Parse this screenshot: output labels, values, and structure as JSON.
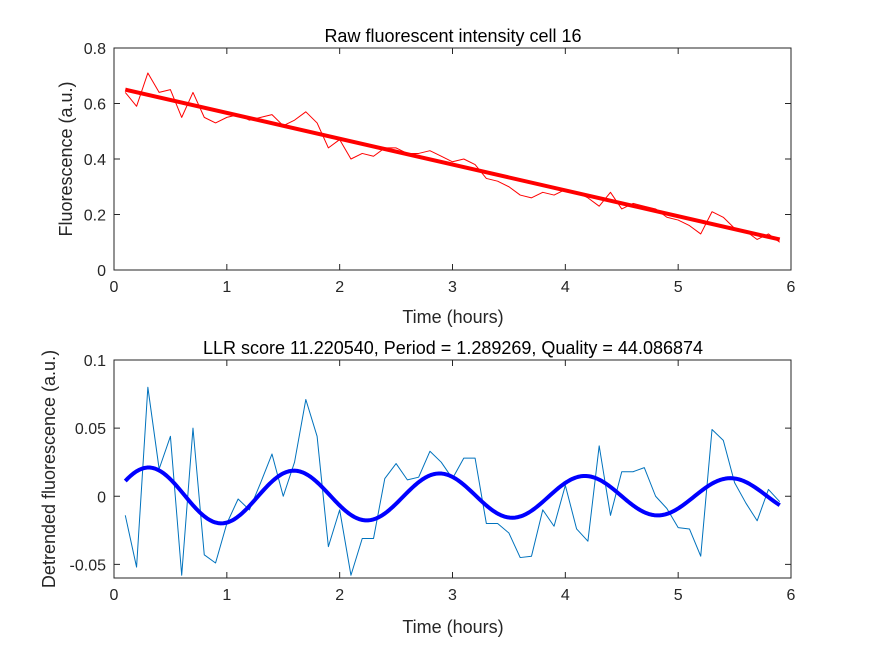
{
  "chart_data": [
    {
      "type": "line",
      "title": "Raw fluorescent intensity cell 16",
      "xlabel": "Time (hours)",
      "ylabel": "Fluorescence (a.u.)",
      "xlim": [
        0,
        6
      ],
      "ylim": [
        0,
        0.8
      ],
      "xticks": [
        "0",
        "1",
        "2",
        "3",
        "4",
        "5",
        "6"
      ],
      "yticks": [
        "0",
        "0.2",
        "0.4",
        "0.6",
        "0.8"
      ],
      "grid": false,
      "colors": {
        "raw": "#ff0000",
        "trend": "#ff0000"
      },
      "series": [
        {
          "role": "raw",
          "x": [
            0.1,
            0.2,
            0.3,
            0.4,
            0.5,
            0.6,
            0.7,
            0.8,
            0.9,
            1.0,
            1.1,
            1.2,
            1.3,
            1.4,
            1.5,
            1.6,
            1.7,
            1.8,
            1.9,
            2.0,
            2.1,
            2.2,
            2.3,
            2.4,
            2.5,
            2.6,
            2.7,
            2.8,
            2.9,
            3.0,
            3.1,
            3.2,
            3.3,
            3.4,
            3.5,
            3.6,
            3.7,
            3.8,
            3.9,
            4.0,
            4.1,
            4.2,
            4.3,
            4.4,
            4.5,
            4.6,
            4.7,
            4.8,
            4.9,
            5.0,
            5.1,
            5.2,
            5.3,
            5.4,
            5.5,
            5.6,
            5.7,
            5.8,
            5.9
          ],
          "y": [
            0.64,
            0.59,
            0.71,
            0.64,
            0.65,
            0.55,
            0.64,
            0.55,
            0.53,
            0.55,
            0.56,
            0.54,
            0.55,
            0.56,
            0.52,
            0.54,
            0.57,
            0.53,
            0.44,
            0.47,
            0.4,
            0.42,
            0.41,
            0.44,
            0.44,
            0.42,
            0.42,
            0.43,
            0.41,
            0.39,
            0.4,
            0.38,
            0.33,
            0.32,
            0.3,
            0.27,
            0.26,
            0.28,
            0.27,
            0.29,
            0.28,
            0.26,
            0.23,
            0.28,
            0.22,
            0.24,
            0.23,
            0.22,
            0.19,
            0.18,
            0.16,
            0.13,
            0.21,
            0.19,
            0.15,
            0.14,
            0.11,
            0.13,
            0.1
          ]
        },
        {
          "role": "trend",
          "x": [
            0.1,
            5.9
          ],
          "y": [
            0.65,
            0.11
          ]
        }
      ]
    },
    {
      "type": "line",
      "title": "LLR score 11.220540, Period = 1.289269, Quality = 44.086874",
      "xlabel": "Time (hours)",
      "ylabel": "Detrended fluorescence (a.u.)",
      "xlim": [
        0,
        6
      ],
      "ylim": [
        -0.06,
        0.1
      ],
      "xticks": [
        "0",
        "1",
        "2",
        "3",
        "4",
        "5",
        "6"
      ],
      "yticks": [
        "-0.05",
        "0",
        "0.05",
        "0.1"
      ],
      "grid": false,
      "colors": {
        "detrended": "#0072bd",
        "fit": "#0000ff"
      },
      "series": [
        {
          "role": "detrended",
          "x": [
            0.1,
            0.2,
            0.3,
            0.4,
            0.5,
            0.6,
            0.7,
            0.8,
            0.9,
            1.0,
            1.1,
            1.2,
            1.3,
            1.4,
            1.5,
            1.6,
            1.7,
            1.8,
            1.9,
            2.0,
            2.1,
            2.2,
            2.3,
            2.4,
            2.5,
            2.6,
            2.7,
            2.8,
            2.9,
            3.0,
            3.1,
            3.2,
            3.3,
            3.4,
            3.5,
            3.6,
            3.7,
            3.8,
            3.9,
            4.0,
            4.1,
            4.2,
            4.3,
            4.4,
            4.5,
            4.6,
            4.7,
            4.8,
            4.9,
            5.0,
            5.1,
            5.2,
            5.3,
            5.4,
            5.5,
            5.6,
            5.7,
            5.8,
            5.9
          ],
          "y": [
            -0.014,
            -0.052,
            0.08,
            0.02,
            0.044,
            -0.058,
            0.05,
            -0.043,
            -0.049,
            -0.02,
            -0.002,
            -0.01,
            0.01,
            0.031,
            0.0,
            0.025,
            0.071,
            0.044,
            -0.037,
            -0.01,
            -0.058,
            -0.031,
            -0.031,
            0.013,
            0.024,
            0.012,
            0.014,
            0.033,
            0.025,
            0.013,
            0.028,
            0.028,
            -0.02,
            -0.02,
            -0.027,
            -0.045,
            -0.044,
            -0.01,
            -0.022,
            0.008,
            -0.024,
            -0.033,
            0.037,
            -0.014,
            0.018,
            0.018,
            0.021,
            0.0,
            -0.009,
            -0.023,
            -0.024,
            -0.044,
            0.049,
            0.041,
            0.01,
            -0.005,
            -0.018,
            0.005,
            -0.004
          ]
        },
        {
          "role": "fit",
          "model": "damped-sine",
          "amplitude": 0.0215,
          "period": 1.289269,
          "phase_peak_x": 0.31,
          "decay_per_hour": 0.09,
          "x_range": [
            0.1,
            5.9
          ]
        }
      ]
    }
  ]
}
